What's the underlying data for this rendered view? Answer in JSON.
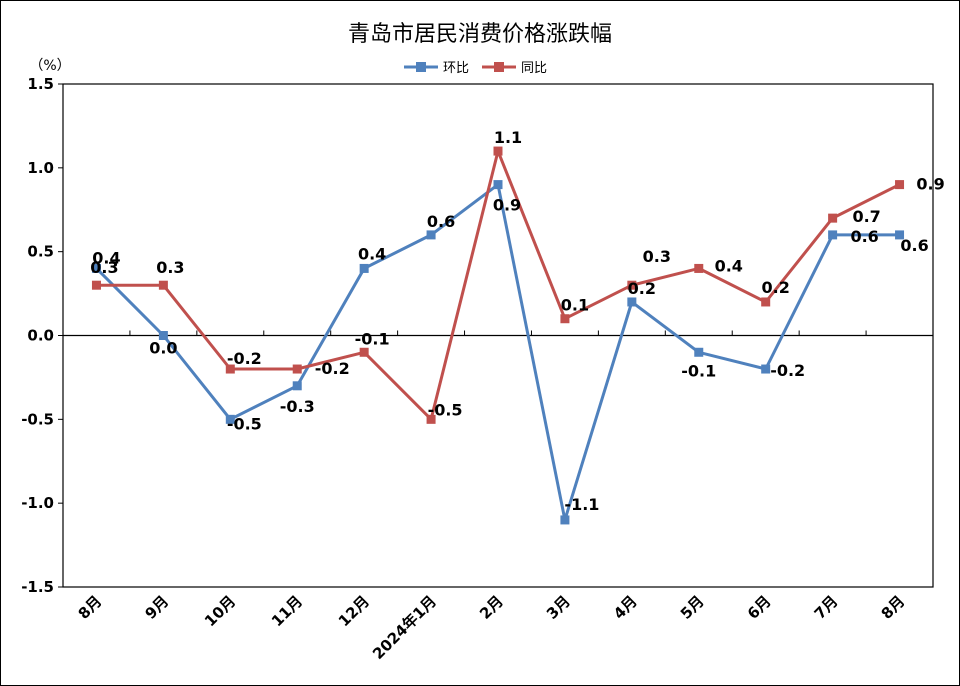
{
  "chart_data": {
    "type": "line",
    "title": "青岛市居民消费价格涨跌幅",
    "ylabel": "（%）",
    "xlabel": "",
    "ylim": [
      -1.5,
      1.5
    ],
    "yticks": [
      "1.5",
      "1.0",
      "0.5",
      "0.0",
      "-0.5",
      "-1.0",
      "-1.5"
    ],
    "categories": [
      "8月",
      "9月",
      "10月",
      "11月",
      "12月",
      "2024年1月",
      "2月",
      "3月",
      "4月",
      "5月",
      "6月",
      "7月",
      "8月"
    ],
    "legend_position": "top-center",
    "grid": false,
    "series": [
      {
        "name": "环比",
        "color": "#4F81BD",
        "values": [
          0.4,
          0.0,
          -0.5,
          -0.3,
          0.4,
          0.6,
          0.9,
          -1.1,
          0.2,
          -0.1,
          -0.2,
          0.6,
          0.6
        ],
        "labels": [
          "0.4",
          "0.0",
          "-0.5",
          "-0.3",
          "0.4",
          "0.6",
          "0.9",
          "-1.1",
          "0.2",
          "-0.1",
          "-0.2",
          "0.6",
          "0.6"
        ]
      },
      {
        "name": "同比",
        "color": "#C0504D",
        "values": [
          0.3,
          0.3,
          -0.2,
          -0.2,
          -0.1,
          -0.5,
          1.1,
          0.1,
          0.3,
          0.4,
          0.2,
          0.7,
          0.9
        ],
        "labels": [
          "0.3",
          "0.3",
          "-0.2",
          "-0.2",
          "-0.1",
          "-0.5",
          "1.1",
          "0.1",
          "0.3",
          "0.4",
          "0.2",
          "0.7",
          "0.9"
        ]
      }
    ]
  }
}
